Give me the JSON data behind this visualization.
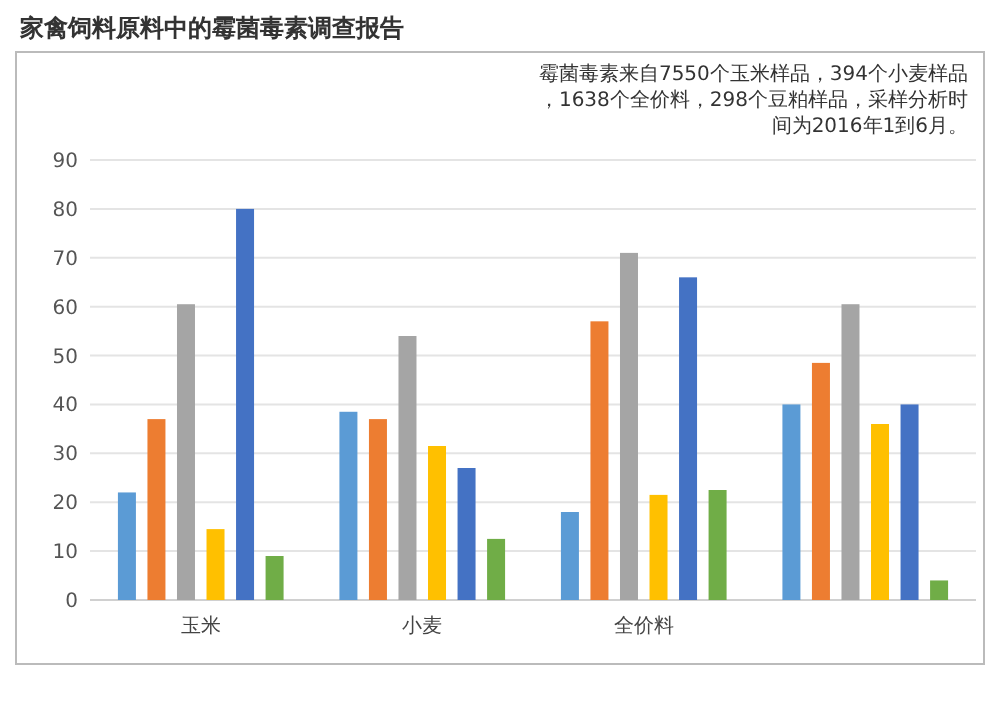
{
  "chart_data": {
    "type": "bar",
    "title": "家禽饲料原料中的霉菌毒素调查报告",
    "annotations": [
      "霉菌毒素来自7550个玉米样品，394个小麦样品，1638个全价料，298个豆粕样品，采样分析时间为2016年1到6月。"
    ],
    "categories": [
      "玉米",
      "小麦",
      "全价料",
      null
    ],
    "series": [
      {
        "color": "#5b9bd5",
        "values": [
          22,
          38.5,
          18,
          40
        ]
      },
      {
        "color": "#ed7d31",
        "values": [
          37,
          37,
          57,
          48.5
        ]
      },
      {
        "color": "#a5a5a5",
        "values": [
          60.5,
          54,
          71,
          60.5
        ]
      },
      {
        "color": "#ffc000",
        "values": [
          14.5,
          31.5,
          21.5,
          36
        ]
      },
      {
        "color": "#4472c4",
        "values": [
          80,
          27,
          66,
          40
        ]
      },
      {
        "color": "#70ad47",
        "values": [
          9,
          12.5,
          22.5,
          4
        ]
      }
    ],
    "ylim": [
      0,
      90
    ],
    "yticks": [
      0,
      10,
      20,
      30,
      40,
      50,
      60,
      70,
      80,
      90
    ],
    "grid": "y"
  }
}
